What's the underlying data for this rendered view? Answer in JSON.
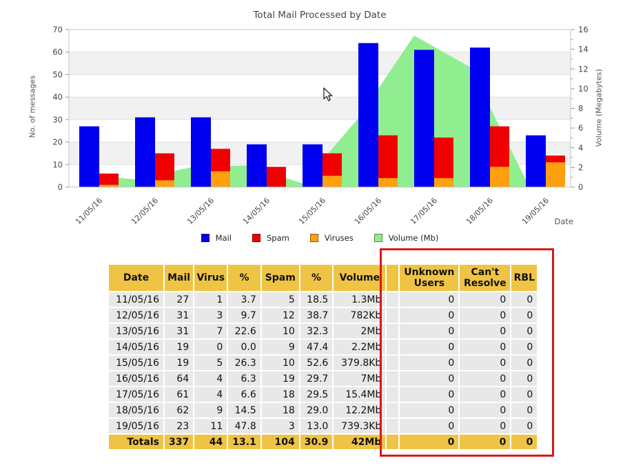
{
  "chart_data": {
    "type": "combo",
    "title": "Total Mail Processed by Date",
    "categories": [
      "11/05/16",
      "12/05/16",
      "13/05/16",
      "14/05/16",
      "15/05/16",
      "16/05/16",
      "17/05/16",
      "18/05/16",
      "19/05/16"
    ],
    "series": [
      {
        "name": "Mail",
        "type": "bar",
        "axis": "left",
        "color": "#0000F0",
        "values": [
          27,
          31,
          31,
          19,
          19,
          64,
          61,
          62,
          23
        ]
      },
      {
        "name": "Spam",
        "type": "bar",
        "axis": "left",
        "color": "#F00000",
        "values": [
          5,
          12,
          10,
          9,
          10,
          19,
          18,
          18,
          3
        ],
        "stacked_on": "Viruses"
      },
      {
        "name": "Viruses",
        "type": "bar",
        "axis": "left",
        "color": "#FFA010",
        "values": [
          1,
          3,
          7,
          0,
          5,
          4,
          4,
          9,
          11
        ]
      },
      {
        "name": "Volume (Mb)",
        "type": "area",
        "axis": "right",
        "color": "#90EE90",
        "values": [
          1.3,
          0.78,
          2.0,
          2.2,
          0.38,
          7.0,
          15.4,
          12.2,
          0.74
        ]
      }
    ],
    "left_axis": {
      "label": "No. of messages",
      "min": 0,
      "max": 70,
      "tick_step": 10
    },
    "right_axis": {
      "label": "Volume (Megabytes)",
      "min": 0,
      "max": 16,
      "tick_step": 2,
      "minor_step": 1
    },
    "x_label": "Date",
    "grid": "horizontal-bands"
  },
  "legend": [
    {
      "label": "Mail",
      "color": "#0000F0"
    },
    {
      "label": "Spam",
      "color": "#F00000"
    },
    {
      "label": "Viruses",
      "color": "#FFA010"
    },
    {
      "label": "Volume (Mb)",
      "color": "#90EE90"
    }
  ],
  "table": {
    "headers": [
      "Date",
      "Mail",
      "Virus",
      "%",
      "Spam",
      "%",
      "Volume",
      "",
      "Unknown Users",
      "Can't Resolve",
      "RBL"
    ],
    "rows": [
      [
        "11/05/16",
        "27",
        "1",
        "3.7",
        "5",
        "18.5",
        "1.3Mb",
        "",
        "0",
        "0",
        "0"
      ],
      [
        "12/05/16",
        "31",
        "3",
        "9.7",
        "12",
        "38.7",
        "782Kb",
        "",
        "0",
        "0",
        "0"
      ],
      [
        "13/05/16",
        "31",
        "7",
        "22.6",
        "10",
        "32.3",
        "2Mb",
        "",
        "0",
        "0",
        "0"
      ],
      [
        "14/05/16",
        "19",
        "0",
        "0.0",
        "9",
        "47.4",
        "2.2Mb",
        "",
        "0",
        "0",
        "0"
      ],
      [
        "15/05/16",
        "19",
        "5",
        "26.3",
        "10",
        "52.6",
        "379.8Kb",
        "",
        "0",
        "0",
        "0"
      ],
      [
        "16/05/16",
        "64",
        "4",
        "6.3",
        "19",
        "29.7",
        "7Mb",
        "",
        "0",
        "0",
        "0"
      ],
      [
        "17/05/16",
        "61",
        "4",
        "6.6",
        "18",
        "29.5",
        "15.4Mb",
        "",
        "0",
        "0",
        "0"
      ],
      [
        "18/05/16",
        "62",
        "9",
        "14.5",
        "18",
        "29.0",
        "12.2Mb",
        "",
        "0",
        "0",
        "0"
      ],
      [
        "19/05/16",
        "23",
        "11",
        "47.8",
        "3",
        "13.0",
        "739.3Kb",
        "",
        "0",
        "0",
        "0"
      ]
    ],
    "totals": [
      "Totals",
      "337",
      "44",
      "13.1",
      "104",
      "30.9",
      "42Mb",
      "",
      "0",
      "0",
      "0"
    ]
  },
  "colors": {
    "table_header_bg": "#EFC444",
    "table_cell_bg": "#E8E8E8",
    "highlight_box": "#D91717",
    "band_stripe": "#F1F1F1",
    "gridline": "#E0E0E0"
  }
}
